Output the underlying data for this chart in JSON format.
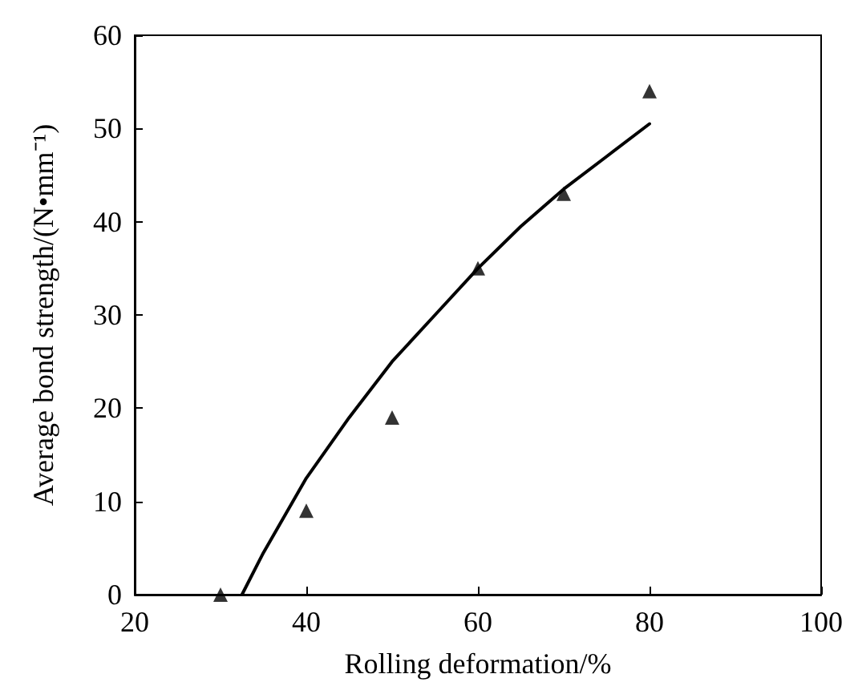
{
  "chart_data": {
    "type": "scatter",
    "xlabel": "Rolling deformation/%",
    "ylabel": "Average bond strength/(N•mm⁻¹)",
    "xlim": [
      20,
      100
    ],
    "xticks": [
      20,
      40,
      60,
      80,
      100
    ],
    "ylim": [
      0,
      60
    ],
    "yticks": [
      0,
      10,
      20,
      30,
      40,
      50,
      60
    ],
    "grid": false,
    "series": [
      {
        "color": "#000000",
        "marker": "triangle",
        "x": [
          30,
          40,
          50,
          60,
          70,
          80
        ],
        "values": [
          0,
          9,
          19,
          35,
          43,
          54
        ]
      },
      {
        "type": "line",
        "color": "#000000",
        "marker": "none",
        "line_style": "solid",
        "x": [
          32.5,
          35,
          40,
          45,
          50,
          55,
          60,
          65,
          70,
          75,
          80
        ],
        "values": [
          0,
          4.5,
          12.5,
          19,
          25,
          30,
          35,
          39.5,
          43.5,
          47,
          50.5
        ]
      }
    ]
  }
}
